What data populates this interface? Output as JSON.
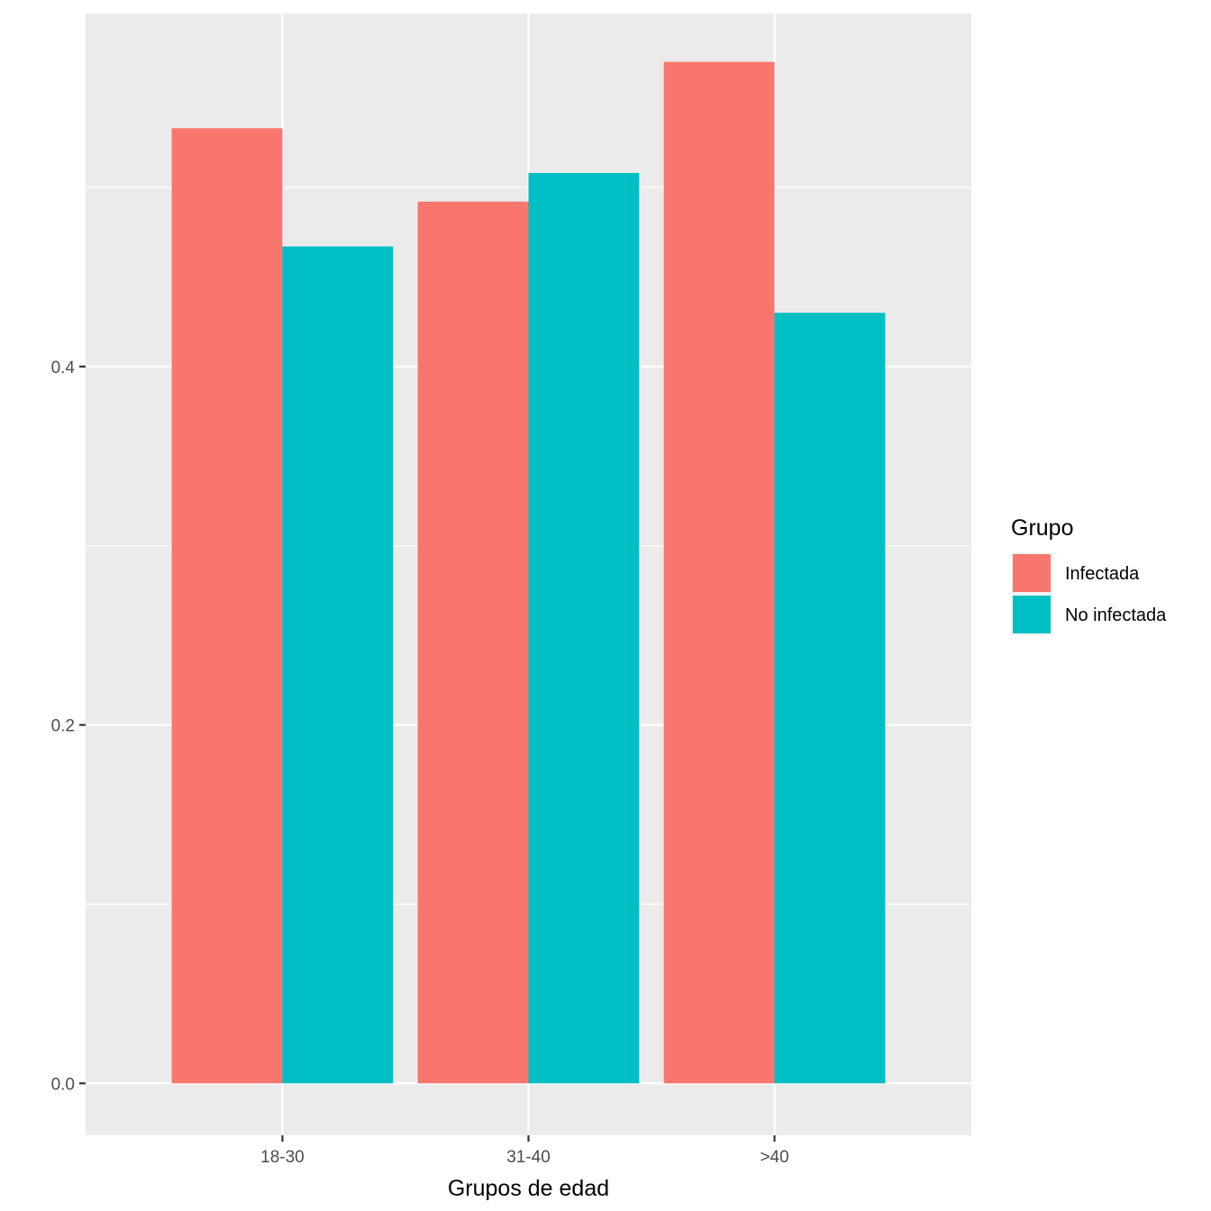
{
  "chart_data": {
    "type": "bar",
    "categories": [
      "18-30",
      "31-40",
      ">40"
    ],
    "series": [
      {
        "name": "Infectada",
        "values": [
          0.533,
          0.492,
          0.57
        ],
        "color": "#F8766D"
      },
      {
        "name": "No infectada",
        "values": [
          0.467,
          0.508,
          0.43
        ],
        "color": "#00BFC4"
      }
    ],
    "title": "",
    "xlabel": "Grupos de edad",
    "ylabel": "",
    "ylim": [
      -0.029,
      0.597
    ],
    "yticks": [
      0.0,
      0.2,
      0.4
    ],
    "ytick_labels": [
      "0.0",
      "0.2",
      "0.4"
    ],
    "grid": true,
    "legend": {
      "title": "Grupo",
      "position": "right"
    },
    "panel_background": "#EBEBEB",
    "grid_color": "#FFFFFF"
  }
}
